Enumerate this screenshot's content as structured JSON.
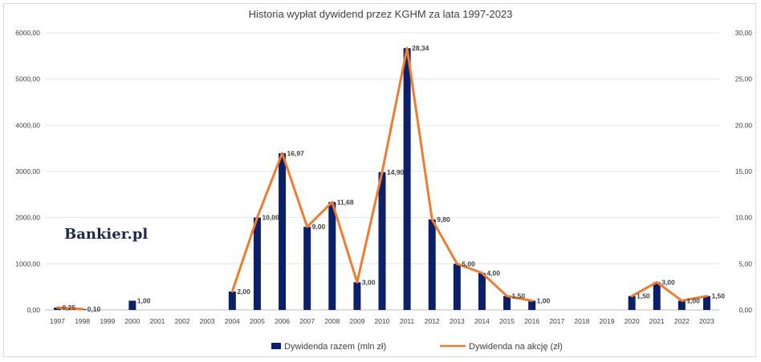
{
  "chart_data": {
    "type": "bar+line",
    "title": "Historia wypłat dywidend przez KGHM za lata 1997-2023",
    "categories": [
      "1997",
      "1998",
      "1999",
      "2000",
      "2001",
      "2002",
      "2003",
      "2004",
      "2005",
      "2006",
      "2007",
      "2008",
      "2009",
      "2010",
      "2011",
      "2012",
      "2013",
      "2014",
      "2015",
      "2016",
      "2017",
      "2018",
      "2019",
      "2020",
      "2021",
      "2022",
      "2023"
    ],
    "series": [
      {
        "name": "Dywidenda razem (mln zł)",
        "type": "bar",
        "axis": "left",
        "color": "#0c1f6b",
        "values": [
          50,
          20,
          null,
          200,
          null,
          null,
          null,
          400,
          2000,
          3394,
          1800,
          2336,
          600,
          2982,
          5668,
          1960,
          1000,
          800,
          300,
          200,
          null,
          null,
          null,
          300,
          600,
          200,
          300
        ]
      },
      {
        "name": "Dywidenda na akcję (zł)",
        "type": "line",
        "axis": "right",
        "color": "#ed7d31",
        "values": [
          0.25,
          0.1,
          null,
          1.0,
          null,
          null,
          null,
          2.0,
          10.0,
          16.97,
          9.0,
          11.68,
          3.0,
          14.9,
          28.34,
          9.8,
          5.0,
          4.0,
          1.5,
          1.0,
          null,
          null,
          null,
          1.5,
          3.0,
          1.0,
          1.5
        ],
        "labels": [
          "0,25",
          "0,10",
          null,
          "1,00",
          null,
          null,
          null,
          "2,00",
          "10,00",
          "16,97",
          "9,00",
          "11,68",
          "3,00",
          "14,90",
          "28,34",
          "9,80",
          "5,00",
          "4,00",
          "1,50",
          "1,00",
          null,
          null,
          null,
          "1,50",
          "3,00",
          "1,00",
          "1,50"
        ]
      }
    ],
    "y_left": {
      "min": 0,
      "max": 6000,
      "ticks": [
        "0,00",
        "1000,00",
        "2000,00",
        "3000,00",
        "4000,00",
        "5000,00",
        "6000,00"
      ]
    },
    "y_right": {
      "min": 0,
      "max": 30,
      "ticks": [
        "0,00",
        "5,00",
        "10,00",
        "15,00",
        "20,00",
        "25,00",
        "30,00"
      ]
    },
    "legend_position": "bottom",
    "grid": true
  },
  "watermark": "Bankier.pl"
}
